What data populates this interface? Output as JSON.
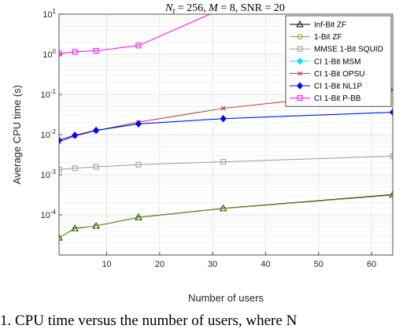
{
  "chart_data": {
    "type": "line",
    "title": "N_t = 256, M = 8, SNR = 20",
    "title_parts": {
      "n": "N",
      "n_sub": "t",
      "rest": " = 256, ",
      "m": "M",
      "rest2": " = 8, SNR = 20"
    },
    "xlabel": "Number of users",
    "ylabel": "Average CPU time (s)",
    "xlim": [
      1,
      64
    ],
    "ylim": [
      1e-05,
      10
    ],
    "yscale": "log",
    "grid": true,
    "legend_position": "top-right",
    "x_ticks": [
      10,
      20,
      30,
      40,
      50,
      60
    ],
    "x_tick_labels": [
      "10",
      "20",
      "30",
      "40",
      "50",
      "60"
    ],
    "y_ticks": [
      0.0001,
      0.001,
      0.01,
      0.1,
      1,
      10
    ],
    "y_tick_labels": [
      {
        "base": "10",
        "exp": "-4"
      },
      {
        "base": "10",
        "exp": "-3"
      },
      {
        "base": "10",
        "exp": "-2"
      },
      {
        "base": "10",
        "exp": "-1"
      },
      {
        "base": "10",
        "exp": "0"
      },
      {
        "base": "10",
        "exp": "1"
      }
    ],
    "series": [
      {
        "name": "Inf-Bit ZF",
        "color": "#000000",
        "marker": "triangle",
        "x": [
          1,
          4,
          8,
          16,
          32,
          64
        ],
        "y": [
          2.7e-05,
          4.6e-05,
          5.3e-05,
          8.7e-05,
          0.000145,
          0.00032
        ]
      },
      {
        "name": "1-Bit ZF",
        "color": "#77ac30",
        "marker": "circle",
        "x": [
          1,
          4,
          8,
          16,
          32,
          64
        ],
        "y": [
          2.7e-05,
          4.5e-05,
          5.3e-05,
          8.6e-05,
          0.000143,
          0.00031
        ]
      },
      {
        "name": "MMSE 1-Bit SQUID",
        "color": "#999999",
        "marker": "square",
        "x": [
          1,
          4,
          8,
          16,
          32,
          64
        ],
        "y": [
          0.00135,
          0.00145,
          0.00157,
          0.00178,
          0.0021,
          0.0029
        ]
      },
      {
        "name": "CI 1-Bit MSM",
        "color": "#00e5e5",
        "marker": "diamond",
        "x": [
          1,
          4,
          8,
          16,
          32,
          64
        ],
        "y": [
          0.0072,
          0.0096,
          0.0125,
          0.0185,
          0.025,
          0.036
        ]
      },
      {
        "name": "CI 1-Bit OPSU",
        "color": "#c0392b",
        "marker": "x",
        "x": [
          1,
          4,
          8,
          16,
          32,
          64
        ],
        "y": [
          0.0066,
          0.0092,
          0.0125,
          0.0205,
          0.045,
          0.13
        ]
      },
      {
        "name": "CI 1-Bit NL1P",
        "color": "#0000ff",
        "marker": "diamond",
        "x": [
          1,
          4,
          8,
          16,
          32,
          64
        ],
        "y": [
          0.0072,
          0.0096,
          0.0128,
          0.0185,
          0.025,
          0.036
        ]
      },
      {
        "name": "CI 1-Bit P-BB",
        "color": "#ff00ff",
        "marker": "square",
        "x": [
          1,
          4,
          8,
          16,
          32
        ],
        "y": [
          1.05,
          1.15,
          1.23,
          1.65,
          14
        ]
      }
    ]
  },
  "caption": "1.  CPU time versus the number of users, where  N"
}
